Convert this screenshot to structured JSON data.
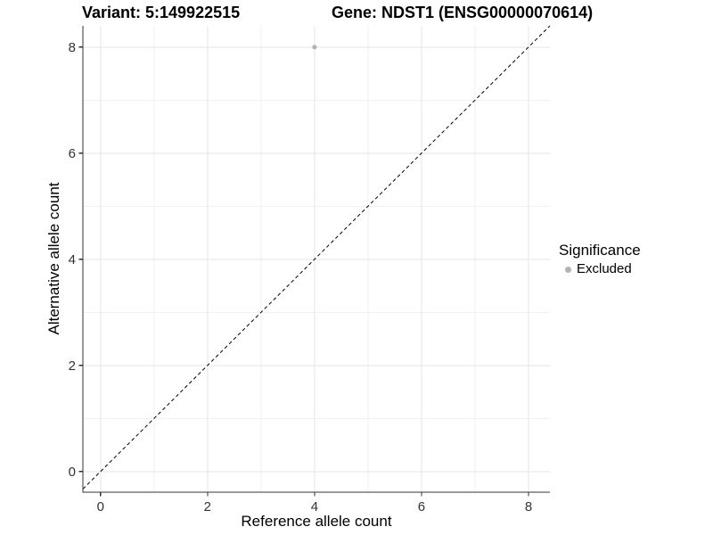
{
  "chart_data": {
    "type": "scatter",
    "title_left": "Variant: 5:149922515",
    "title_right": "Gene: NDST1 (ENSG00000070614)",
    "xlabel": "Reference allele count",
    "ylabel": "Alternative allele count",
    "xlim": [
      -0.33,
      8.4
    ],
    "ylim": [
      -0.39,
      8.4
    ],
    "xticks": [
      0,
      2,
      4,
      6,
      8
    ],
    "yticks": [
      0,
      2,
      4,
      6,
      8
    ],
    "minor_xticks": [
      1,
      3,
      5,
      7
    ],
    "minor_yticks": [
      1,
      3,
      5,
      7
    ],
    "grid": "major and minor, light grey on white",
    "legend_position": "right",
    "legend_title": "Significance",
    "series": [
      {
        "name": "Excluded",
        "color": "#b3b3b3",
        "points": [
          {
            "x": 4,
            "y": 8
          }
        ]
      }
    ],
    "reference_line": {
      "kind": "identity_y_equals_x",
      "style": "dashed",
      "color": "#000000"
    }
  },
  "colors": {
    "background": "#ffffff",
    "major_grid": "#e4e4e4",
    "minor_grid": "#f1f1f1",
    "axis_line": "#333333",
    "tick_text": "#323232",
    "point": "#b3b3b3"
  }
}
